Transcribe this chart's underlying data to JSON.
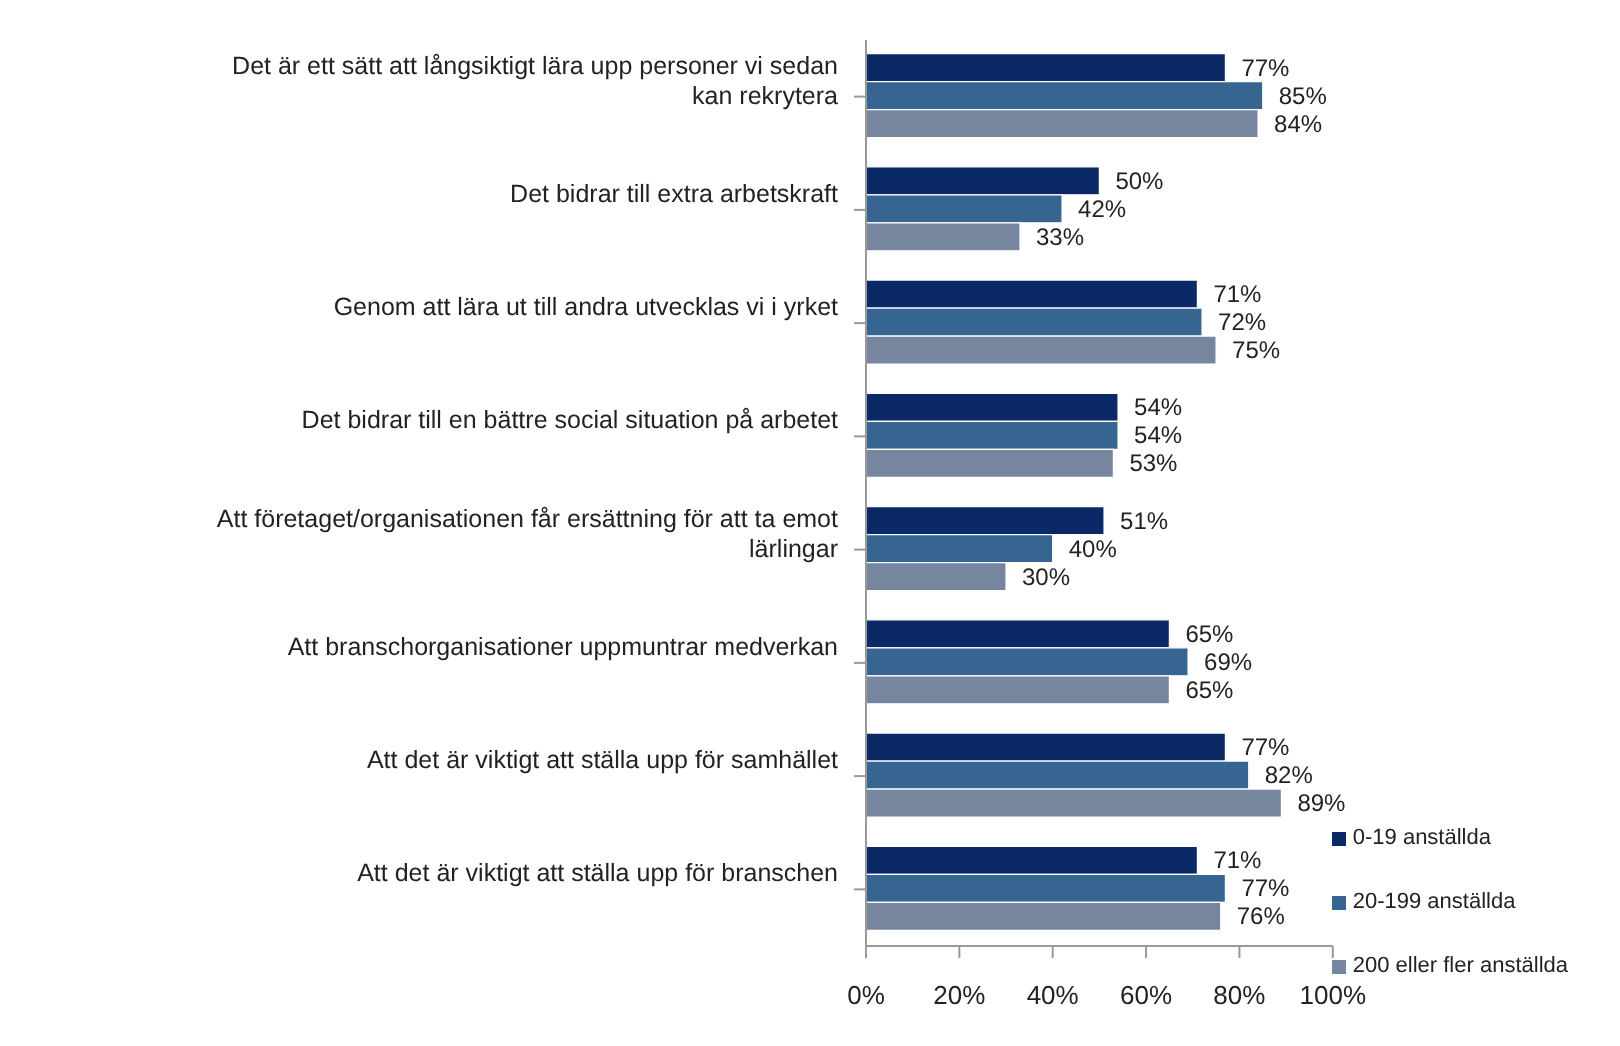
{
  "chart_data": {
    "type": "bar",
    "orientation": "horizontal",
    "categories": [
      "Det är ett sätt att långsiktigt lära upp personer vi sedan kan rekrytera",
      "Det bidrar till extra arbetskraft",
      "Genom att lära ut till andra utvecklas vi i yrket",
      "Det bidrar till en bättre social situation på arbetet",
      "Att företaget/organisationen får ersättning för att ta emot lärlingar",
      "Att branschorganisationer uppmuntrar medverkan",
      "Att det är viktigt att ställa upp för samhället",
      "Att det är viktigt att ställa upp för branschen"
    ],
    "series": [
      {
        "name": "0-19 anställda",
        "color": "#0b2966",
        "values": [
          77,
          50,
          71,
          54,
          51,
          65,
          77,
          71
        ],
        "value_labels": [
          "77%",
          "50%",
          "71%",
          "54%",
          "51%",
          "65%",
          "77%",
          "71%"
        ]
      },
      {
        "name": "20-199 anställda",
        "color": "#376591",
        "values": [
          85,
          42,
          72,
          54,
          40,
          69,
          82,
          77
        ],
        "value_labels": [
          "85%",
          "42%",
          "72%",
          "54%",
          "40%",
          "69%",
          "82%",
          "77%"
        ]
      },
      {
        "name": "200 eller fler anställda",
        "color": "#76869f",
        "values": [
          84,
          33,
          75,
          53,
          30,
          65,
          89,
          76
        ],
        "value_labels": [
          "84%",
          "33%",
          "75%",
          "53%",
          "30%",
          "65%",
          "89%",
          "76%"
        ]
      }
    ],
    "xlim": [
      0,
      100
    ],
    "xticks": [
      {
        "value": 0,
        "label": "0%"
      },
      {
        "value": 20,
        "label": "20%"
      },
      {
        "value": 40,
        "label": "40%"
      },
      {
        "value": 60,
        "label": "60%"
      },
      {
        "value": 80,
        "label": "80%"
      },
      {
        "value": 100,
        "label": "100%"
      }
    ],
    "grid": false,
    "legend": "bottom right"
  }
}
